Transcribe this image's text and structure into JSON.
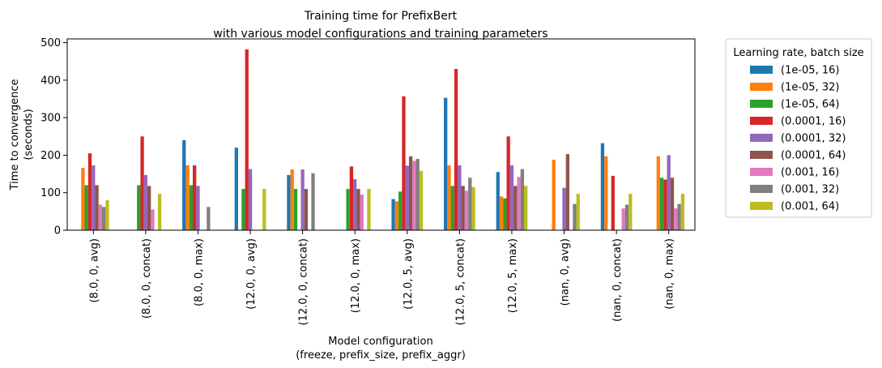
{
  "chart_data": {
    "type": "bar",
    "title": [
      "Training time for PrefixBert",
      "with various model configurations and training parameters"
    ],
    "xlabel": [
      "Model configuration",
      "(freeze, prefix_size, prefix_aggr)"
    ],
    "ylabel": [
      "Time to convergence",
      "(seconds)"
    ],
    "ylim": [
      0,
      510
    ],
    "yticks": [
      0,
      100,
      200,
      300,
      400,
      500
    ],
    "grid": false,
    "legend_placement": "outside-right",
    "legend_title": "Learning rate, batch size",
    "categories": [
      "(8.0, 0, avg)",
      "(8.0, 0, concat)",
      "(8.0, 0, max)",
      "(12.0, 0, avg)",
      "(12.0, 0, concat)",
      "(12.0, 0, max)",
      "(12.0, 5, avg)",
      "(12.0, 5, concat)",
      "(12.0, 5, max)",
      "(nan, 0, avg)",
      "(nan, 0, concat)",
      "(nan, 0, max)"
    ],
    "series": [
      {
        "name": "(1e-05, 16)",
        "color": "#1f77b4",
        "values": [
          null,
          null,
          240,
          220,
          147,
          null,
          83,
          353,
          155,
          null,
          232,
          null
        ]
      },
      {
        "name": "(1e-05, 32)",
        "color": "#ff7f0e",
        "values": [
          166,
          null,
          173,
          null,
          162,
          null,
          77,
          173,
          90,
          188,
          197,
          197
        ]
      },
      {
        "name": "(1e-05, 64)",
        "color": "#2ca02c",
        "values": [
          120,
          120,
          120,
          110,
          110,
          110,
          103,
          118,
          85,
          null,
          null,
          140
        ]
      },
      {
        "name": "(0.0001, 16)",
        "color": "#d62728",
        "values": [
          205,
          250,
          173,
          482,
          null,
          170,
          357,
          430,
          250,
          null,
          145,
          135
        ]
      },
      {
        "name": "(0.0001, 32)",
        "color": "#9467bd",
        "values": [
          173,
          147,
          118,
          163,
          162,
          136,
          172,
          173,
          173,
          113,
          null,
          200
        ]
      },
      {
        "name": "(0.0001, 64)",
        "color": "#8c564b",
        "values": [
          120,
          118,
          null,
          null,
          110,
          110,
          197,
          118,
          118,
          203,
          null,
          140
        ]
      },
      {
        "name": "(0.001, 16)",
        "color": "#e377c2",
        "values": [
          68,
          55,
          null,
          null,
          null,
          95,
          185,
          105,
          142,
          null,
          58,
          58
        ]
      },
      {
        "name": "(0.001, 32)",
        "color": "#7f7f7f",
        "values": [
          62,
          null,
          62,
          null,
          152,
          null,
          190,
          140,
          163,
          70,
          68,
          70
        ]
      },
      {
        "name": "(0.001, 64)",
        "color": "#bcbd22",
        "values": [
          80,
          97,
          null,
          110,
          null,
          110,
          158,
          115,
          118,
          97,
          97,
          97
        ]
      }
    ]
  }
}
